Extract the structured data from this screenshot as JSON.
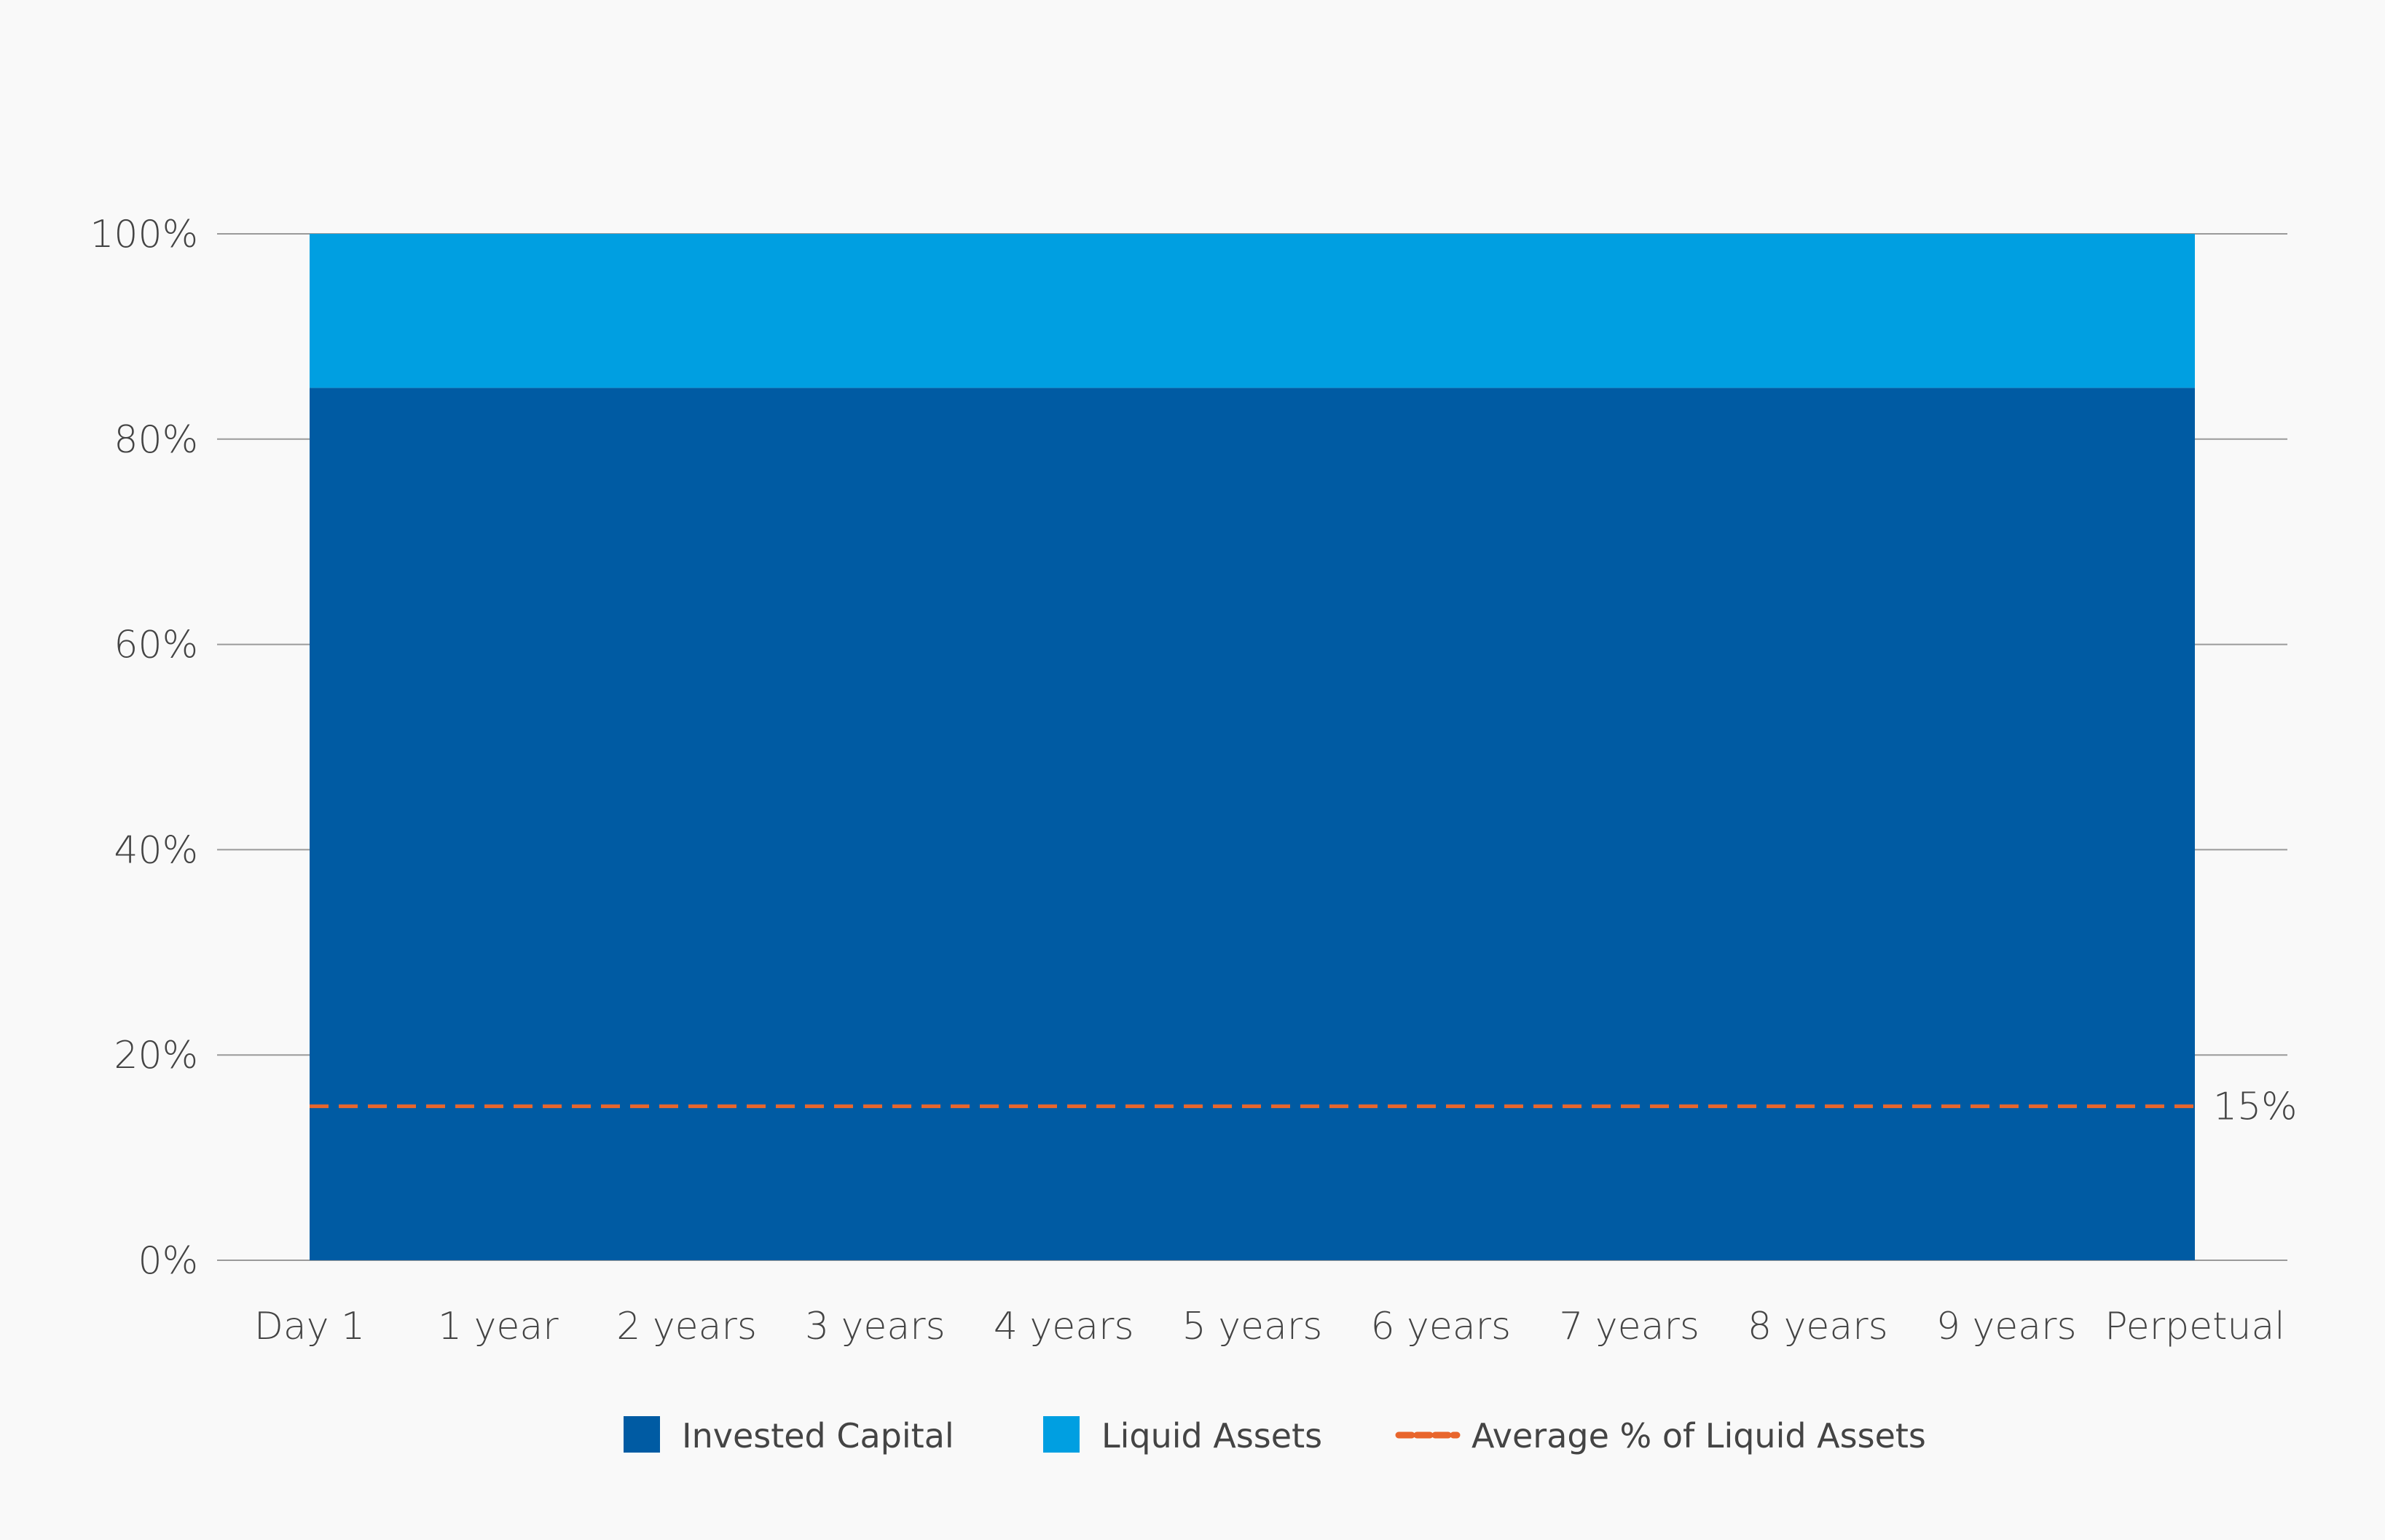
{
  "chart_data": {
    "type": "area",
    "title": "",
    "xlabel": "",
    "ylabel": "",
    "categories": [
      "Day 1",
      "1 year",
      "2 years",
      "3 years",
      "4 years",
      "5 years",
      "6 years",
      "7 years",
      "8 years",
      "9 years",
      "Perpetual"
    ],
    "series": [
      {
        "name": "Invested Capital",
        "color": "#005ba3",
        "values": [
          85,
          85,
          85,
          85,
          85,
          85,
          85,
          85,
          85,
          85,
          85
        ]
      },
      {
        "name": "Liquid Assets",
        "color": "#009fe1",
        "values": [
          15,
          15,
          15,
          15,
          15,
          15,
          15,
          15,
          15,
          15,
          15
        ]
      }
    ],
    "reference_line": {
      "name": "Average % of Liquid Assets",
      "value": 15,
      "label": "15%",
      "color": "#e8662d",
      "style": "dashed"
    },
    "stacked": true,
    "ylim": [
      0,
      100
    ],
    "yticks": [
      0,
      20,
      40,
      60,
      80,
      100
    ],
    "ytick_labels": [
      "0%",
      "20%",
      "40%",
      "60%",
      "80%",
      "100%"
    ],
    "grid": true,
    "legend_position": "bottom-center"
  }
}
